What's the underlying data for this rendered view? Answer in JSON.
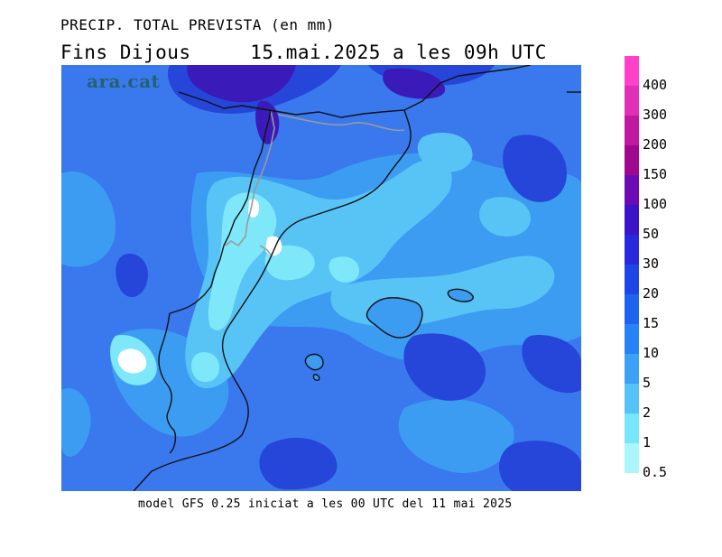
{
  "map": {
    "title_line1": "PRECIP. TOTAL PREVISTA (en mm)",
    "title_line2": "Fins Dijous     15.mai.2025 a les 09h UTC",
    "watermark": "ara.cat",
    "footer": "model GFS 0.25 iniciat a les 00 UTC del 11 mai 2025"
  },
  "legend": {
    "levels": [
      "400",
      "300",
      "200",
      "150",
      "100",
      "50",
      "30",
      "20",
      "15",
      "10",
      "5",
      "2",
      "1",
      "0.5"
    ],
    "colors": [
      "#ff40c8",
      "#e030b8",
      "#c018a0",
      "#a00890",
      "#6c0ab4",
      "#3c14c8",
      "#2828dc",
      "#1e46e6",
      "#1e64f0",
      "#2882f5",
      "#3ca0f5",
      "#55c3f8",
      "#78e6fa",
      "#aaf6fa"
    ]
  }
}
